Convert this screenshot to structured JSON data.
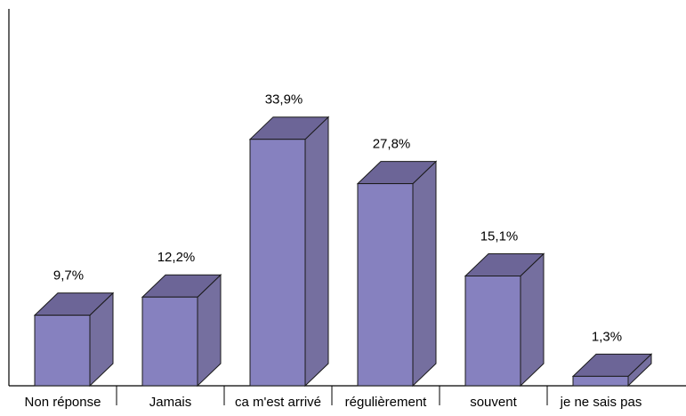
{
  "chart_data": {
    "type": "bar",
    "style": "3d-column",
    "categories": [
      "Non réponse",
      "Jamais",
      "ca m'est arrivé",
      "régulièrement",
      "souvent",
      "je ne sais pas"
    ],
    "values": [
      9.7,
      12.2,
      33.9,
      27.8,
      15.1,
      1.3
    ],
    "data_labels": [
      "9,7%",
      "12,2%",
      "33,9%",
      "27,8%",
      "15,1%",
      "1,3%"
    ],
    "value_unit": "%",
    "ylim": [
      0,
      40
    ],
    "grid": false,
    "legend": "none",
    "title": "",
    "xlabel": "",
    "ylabel": "",
    "colors": {
      "front": "#8681bf",
      "side": "#756f9f",
      "top": "#6c6597",
      "outline": "#1a1a1a"
    }
  }
}
